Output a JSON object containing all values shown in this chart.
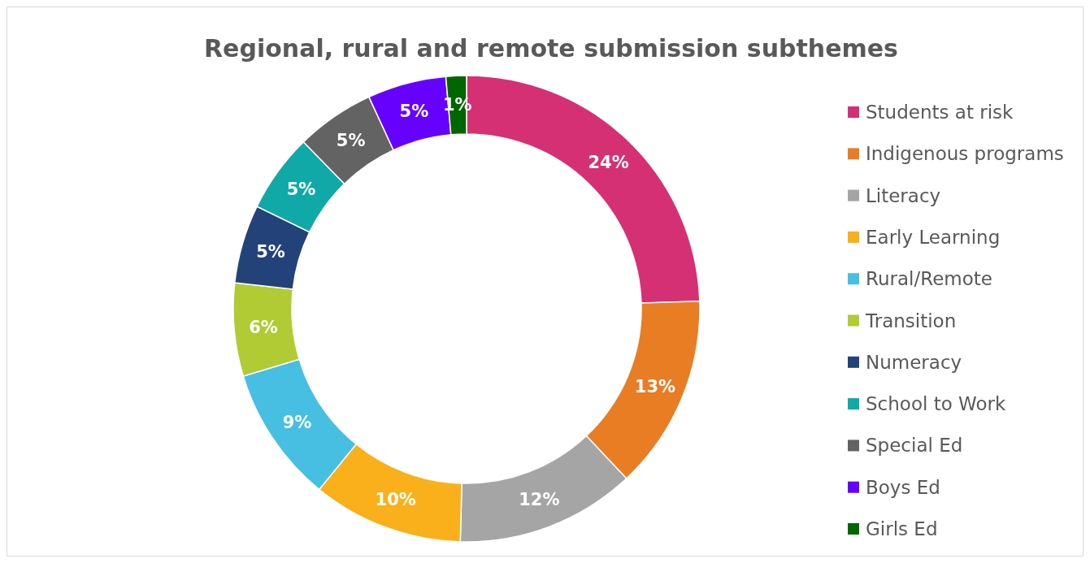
{
  "chart_data": {
    "type": "donut",
    "title": "Regional, rural and remote submission subthemes",
    "categories": [
      "Students at risk",
      "Indigenous programs",
      "Literacy",
      "Early Learning",
      "Rural/Remote",
      "Transition",
      "Numeracy",
      "School to Work",
      "Special Ed",
      "Boys Ed",
      "Girls Ed"
    ],
    "values": [
      24.49,
      13.49,
      12.45,
      10.45,
      9.45,
      6.45,
      5.45,
      5.45,
      5.45,
      5.45,
      1.42
    ],
    "value_labels": [
      "24%",
      "13%",
      "12%",
      "10%",
      "9%",
      "6%",
      "5%",
      "5%",
      "5%",
      "5%",
      "1%"
    ],
    "colors": [
      "#d63075",
      "#e87d24",
      "#a5a5a5",
      "#f9b01a",
      "#46bfe3",
      "#b0cb33",
      "#24427a",
      "#11a9a8",
      "#636363",
      "#6600ff",
      "#006600"
    ],
    "legend": "right"
  }
}
